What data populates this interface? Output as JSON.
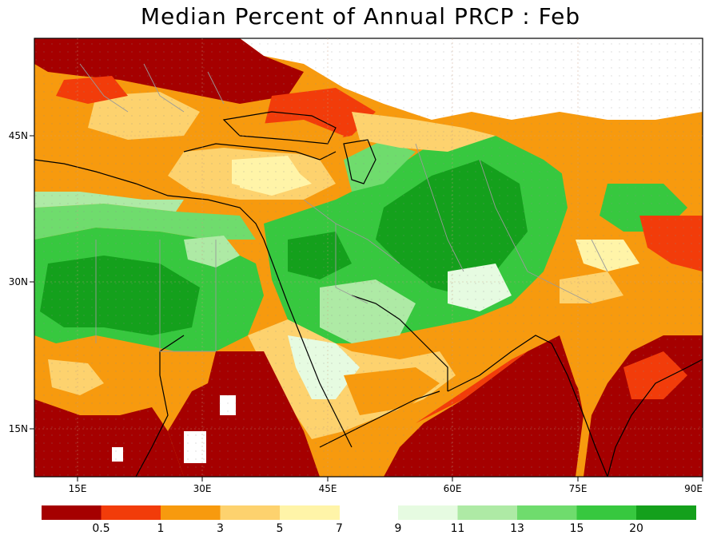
{
  "title": "Median Percent of Annual PRCP :   Feb",
  "map": {
    "lon_labels": [
      "15E",
      "30E",
      "45E",
      "60E",
      "75E",
      "90E"
    ],
    "lat_labels": [
      "45N",
      "30N",
      "15N"
    ]
  },
  "legend": {
    "colors": [
      "#a50000",
      "#f23c0a",
      "#f79a0e",
      "#fdd26e",
      "#fff4a8",
      "#e6fbe1",
      "#aeeaa5",
      "#6fdc6d",
      "#37c83f",
      "#14a01c"
    ],
    "labels": [
      "0.5",
      "1",
      "3",
      "5",
      "7",
      "9",
      "11",
      "13",
      "15",
      "20"
    ]
  },
  "colors": {
    "ocean_red": "#a50000",
    "border": "#000000",
    "admin": "#9a9a9a"
  }
}
